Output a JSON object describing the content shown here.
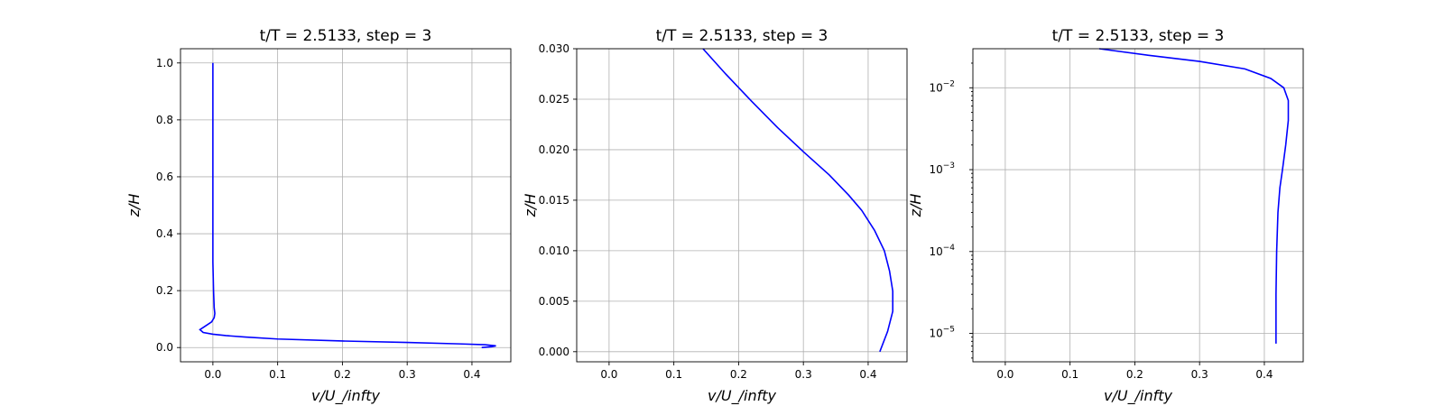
{
  "chart_data": [
    {
      "type": "line",
      "title": "t/T = 2.5133, step = 3",
      "xlabel": "v/U_/infty",
      "ylabel": "z/H",
      "xlim": [
        -0.05,
        0.46
      ],
      "ylim": [
        -0.05,
        1.05
      ],
      "xticks": [
        0.0,
        0.1,
        0.2,
        0.3,
        0.4
      ],
      "xtick_labels": [
        "0.0",
        "0.1",
        "0.2",
        "0.3",
        "0.4"
      ],
      "yticks": [
        0.0,
        0.2,
        0.4,
        0.6,
        0.8,
        1.0
      ],
      "ytick_labels": [
        "0.0",
        "0.2",
        "0.4",
        "0.6",
        "0.8",
        "1.0"
      ],
      "yscale": "linear",
      "grid": true,
      "color": "#0000ff",
      "series": [
        {
          "x": [
            0.415,
            0.43,
            0.437,
            0.42,
            0.38,
            0.3,
            0.2,
            0.1,
            0.05,
            0.02,
            0.0,
            -0.015,
            -0.02,
            -0.012,
            -0.002,
            0.002,
            0.003,
            0.002,
            0.001,
            0.0,
            0.0,
            0.0,
            0.0,
            0.0
          ],
          "y": [
            0.0,
            0.003,
            0.006,
            0.01,
            0.013,
            0.018,
            0.023,
            0.03,
            0.037,
            0.042,
            0.047,
            0.053,
            0.063,
            0.075,
            0.09,
            0.105,
            0.12,
            0.14,
            0.2,
            0.3,
            0.5,
            0.7,
            0.9,
            1.0
          ]
        }
      ]
    },
    {
      "type": "line",
      "title": "t/T = 2.5133, step = 3",
      "xlabel": "v/U_/infty",
      "ylabel": "z/H",
      "xlim": [
        -0.05,
        0.46
      ],
      "ylim": [
        -0.001,
        0.03
      ],
      "xticks": [
        0.0,
        0.1,
        0.2,
        0.3,
        0.4
      ],
      "xtick_labels": [
        "0.0",
        "0.1",
        "0.2",
        "0.3",
        "0.4"
      ],
      "yticks": [
        0.0,
        0.005,
        0.01,
        0.015,
        0.02,
        0.025,
        0.03
      ],
      "ytick_labels": [
        "0.000",
        "0.005",
        "0.010",
        "0.015",
        "0.020",
        "0.025",
        "0.030"
      ],
      "yscale": "linear",
      "grid": true,
      "color": "#0000ff",
      "series": [
        {
          "x": [
            0.418,
            0.43,
            0.438,
            0.438,
            0.433,
            0.425,
            0.41,
            0.39,
            0.37,
            0.34,
            0.3,
            0.26,
            0.22,
            0.18,
            0.145
          ],
          "y": [
            0.0,
            0.002,
            0.004,
            0.006,
            0.008,
            0.01,
            0.012,
            0.014,
            0.0155,
            0.0175,
            0.0198,
            0.0222,
            0.0248,
            0.0275,
            0.03
          ]
        }
      ]
    },
    {
      "type": "line",
      "title": "t/T = 2.5133, step = 3",
      "xlabel": "v/U_/infty",
      "ylabel": "z/H",
      "xlim": [
        -0.05,
        0.46
      ],
      "ylim": [
        4.5e-06,
        0.03
      ],
      "xticks": [
        0.0,
        0.1,
        0.2,
        0.3,
        0.4
      ],
      "xtick_labels": [
        "0.0",
        "0.1",
        "0.2",
        "0.3",
        "0.4"
      ],
      "yticks": [
        1e-05,
        0.0001,
        0.001,
        0.01
      ],
      "ytick_labels": [
        "10",
        "10",
        "10",
        "10"
      ],
      "ytick_exponents": [
        "−5",
        "−4",
        "−3",
        "−2"
      ],
      "yscale": "log",
      "grid": true,
      "color": "#0000ff",
      "series": [
        {
          "x": [
            0.418,
            0.418,
            0.418,
            0.419,
            0.421,
            0.424,
            0.428,
            0.433,
            0.437,
            0.437,
            0.43,
            0.41,
            0.37,
            0.3,
            0.22,
            0.145
          ],
          "y": [
            7.5e-06,
            1e-05,
            3e-05,
            0.0001,
            0.0003,
            0.0006,
            0.001,
            0.002,
            0.004,
            0.007,
            0.01,
            0.013,
            0.017,
            0.021,
            0.025,
            0.03
          ]
        }
      ]
    }
  ]
}
